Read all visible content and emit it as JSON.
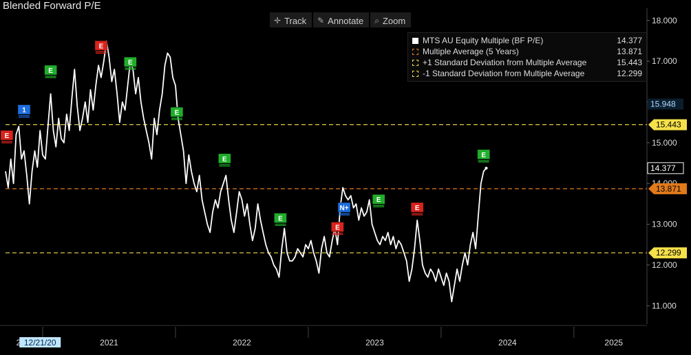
{
  "title": "Blended Forward P/E",
  "toolbar": {
    "track": "Track",
    "annotate": "Annotate",
    "zoom": "Zoom",
    "track_icon": "crosshair-icon",
    "annotate_icon": "pencil-icon",
    "zoom_icon": "magnifier-icon"
  },
  "legend": [
    {
      "label": "MTS AU Equity Multiple (BF P/E)",
      "value": "14.377",
      "color": "#ffffff",
      "style": "solid"
    },
    {
      "label": "Multiple Average (5 Years)",
      "value": "13.871",
      "color": "#e07a1a",
      "style": "dashed"
    },
    {
      "label": "+1 Standard Deviation from Multiple Average",
      "value": "15.443",
      "color": "#f5e04a",
      "style": "dashed"
    },
    {
      "label": "-1 Standard Deviation from Multiple Average",
      "value": "12.299",
      "color": "#f5e04a",
      "style": "dashed"
    }
  ],
  "chart_data": {
    "type": "line",
    "title": "Blended Forward P/E",
    "x_axis": {
      "ticks": [
        {
          "label": "2020",
          "year": 2020.87
        },
        {
          "label": "12/21/20",
          "year": 2020.97,
          "highlight": true
        },
        {
          "label": "2021",
          "year": 2021.5
        },
        {
          "label": "2022",
          "year": 2022.5
        },
        {
          "label": "2023",
          "year": 2023.5
        },
        {
          "label": "2024",
          "year": 2024.5
        },
        {
          "label": "2025",
          "year": 2025.3
        }
      ],
      "dividers": [
        2021.0,
        2022.0,
        2023.0,
        2024.0,
        2025.0
      ],
      "range": [
        2020.72,
        2025.55
      ]
    },
    "y_axis": {
      "ticks": [
        "11.000",
        "12.000",
        "13.000",
        "14.000",
        "15.000",
        "16.000",
        "17.000",
        "18.000"
      ],
      "range": [
        10.55,
        18.3
      ],
      "side": "right"
    },
    "series": [
      {
        "name": "MTS AU Equity Multiple (BF P/E)",
        "color": "#ffffff",
        "points": [
          [
            2020.72,
            14.3
          ],
          [
            2020.74,
            13.9
          ],
          [
            2020.76,
            14.6
          ],
          [
            2020.78,
            14.0
          ],
          [
            2020.8,
            15.2
          ],
          [
            2020.82,
            15.4
          ],
          [
            2020.84,
            14.6
          ],
          [
            2020.86,
            14.8
          ],
          [
            2020.88,
            14.2
          ],
          [
            2020.9,
            13.5
          ],
          [
            2020.92,
            14.3
          ],
          [
            2020.94,
            14.8
          ],
          [
            2020.96,
            14.4
          ],
          [
            2020.98,
            15.3
          ],
          [
            2021.0,
            14.7
          ],
          [
            2021.02,
            14.6
          ],
          [
            2021.04,
            15.4
          ],
          [
            2021.06,
            16.2
          ],
          [
            2021.08,
            15.3
          ],
          [
            2021.1,
            14.9
          ],
          [
            2021.12,
            15.6
          ],
          [
            2021.14,
            15.1
          ],
          [
            2021.16,
            15.0
          ],
          [
            2021.18,
            15.7
          ],
          [
            2021.2,
            15.3
          ],
          [
            2021.22,
            16.1
          ],
          [
            2021.24,
            16.8
          ],
          [
            2021.26,
            15.9
          ],
          [
            2021.28,
            15.3
          ],
          [
            2021.3,
            15.6
          ],
          [
            2021.32,
            16.0
          ],
          [
            2021.34,
            15.5
          ],
          [
            2021.36,
            16.3
          ],
          [
            2021.38,
            15.8
          ],
          [
            2021.4,
            16.4
          ],
          [
            2021.42,
            16.9
          ],
          [
            2021.44,
            16.6
          ],
          [
            2021.46,
            17.0
          ],
          [
            2021.48,
            17.5
          ],
          [
            2021.5,
            17.1
          ],
          [
            2021.52,
            16.5
          ],
          [
            2021.54,
            16.8
          ],
          [
            2021.56,
            16.2
          ],
          [
            2021.58,
            15.5
          ],
          [
            2021.6,
            16.0
          ],
          [
            2021.62,
            15.8
          ],
          [
            2021.64,
            16.4
          ],
          [
            2021.66,
            17.0
          ],
          [
            2021.68,
            16.8
          ],
          [
            2021.7,
            16.2
          ],
          [
            2021.72,
            16.6
          ],
          [
            2021.74,
            16.0
          ],
          [
            2021.76,
            15.6
          ],
          [
            2021.78,
            15.3
          ],
          [
            2021.8,
            15.0
          ],
          [
            2021.82,
            14.6
          ],
          [
            2021.84,
            15.6
          ],
          [
            2021.86,
            15.2
          ],
          [
            2021.88,
            15.8
          ],
          [
            2021.9,
            16.2
          ],
          [
            2021.92,
            16.9
          ],
          [
            2021.94,
            17.2
          ],
          [
            2021.96,
            17.1
          ],
          [
            2021.98,
            16.6
          ],
          [
            2022.0,
            16.4
          ],
          [
            2022.02,
            15.6
          ],
          [
            2022.04,
            15.2
          ],
          [
            2022.06,
            14.8
          ],
          [
            2022.08,
            14.0
          ],
          [
            2022.1,
            14.7
          ],
          [
            2022.12,
            14.3
          ],
          [
            2022.14,
            14.0
          ],
          [
            2022.16,
            13.8
          ],
          [
            2022.18,
            14.2
          ],
          [
            2022.2,
            13.6
          ],
          [
            2022.22,
            13.3
          ],
          [
            2022.24,
            13.0
          ],
          [
            2022.26,
            12.8
          ],
          [
            2022.28,
            13.3
          ],
          [
            2022.3,
            13.6
          ],
          [
            2022.32,
            13.4
          ],
          [
            2022.34,
            13.8
          ],
          [
            2022.36,
            14.0
          ],
          [
            2022.38,
            14.2
          ],
          [
            2022.4,
            13.6
          ],
          [
            2022.42,
            13.1
          ],
          [
            2022.44,
            12.8
          ],
          [
            2022.46,
            13.3
          ],
          [
            2022.48,
            13.8
          ],
          [
            2022.5,
            13.6
          ],
          [
            2022.52,
            13.2
          ],
          [
            2022.54,
            13.5
          ],
          [
            2022.56,
            13.0
          ],
          [
            2022.58,
            12.6
          ],
          [
            2022.6,
            12.9
          ],
          [
            2022.62,
            13.5
          ],
          [
            2022.64,
            13.1
          ],
          [
            2022.66,
            12.8
          ],
          [
            2022.68,
            12.5
          ],
          [
            2022.7,
            12.3
          ],
          [
            2022.72,
            12.2
          ],
          [
            2022.74,
            12.0
          ],
          [
            2022.76,
            11.9
          ],
          [
            2022.78,
            11.7
          ],
          [
            2022.8,
            12.4
          ],
          [
            2022.82,
            12.9
          ],
          [
            2022.84,
            12.3
          ],
          [
            2022.86,
            12.1
          ],
          [
            2022.88,
            12.1
          ],
          [
            2022.9,
            12.2
          ],
          [
            2022.92,
            12.4
          ],
          [
            2022.94,
            12.3
          ],
          [
            2022.96,
            12.2
          ],
          [
            2022.98,
            12.5
          ],
          [
            2023.0,
            12.4
          ],
          [
            2023.02,
            12.6
          ],
          [
            2023.04,
            12.3
          ],
          [
            2023.06,
            12.1
          ],
          [
            2023.08,
            11.8
          ],
          [
            2023.1,
            12.4
          ],
          [
            2023.12,
            12.7
          ],
          [
            2023.14,
            12.3
          ],
          [
            2023.16,
            12.2
          ],
          [
            2023.18,
            12.6
          ],
          [
            2023.2,
            12.9
          ],
          [
            2023.22,
            12.5
          ],
          [
            2023.24,
            13.4
          ],
          [
            2023.26,
            13.9
          ],
          [
            2023.28,
            13.7
          ],
          [
            2023.3,
            13.6
          ],
          [
            2023.32,
            13.7
          ],
          [
            2023.34,
            13.4
          ],
          [
            2023.36,
            13.5
          ],
          [
            2023.38,
            13.1
          ],
          [
            2023.4,
            13.4
          ],
          [
            2023.42,
            13.2
          ],
          [
            2023.44,
            13.3
          ],
          [
            2023.46,
            13.6
          ],
          [
            2023.48,
            13.0
          ],
          [
            2023.5,
            12.8
          ],
          [
            2023.52,
            12.6
          ],
          [
            2023.54,
            12.5
          ],
          [
            2023.56,
            12.7
          ],
          [
            2023.58,
            12.6
          ],
          [
            2023.6,
            12.8
          ],
          [
            2023.62,
            12.5
          ],
          [
            2023.64,
            12.7
          ],
          [
            2023.66,
            12.4
          ],
          [
            2023.68,
            12.6
          ],
          [
            2023.7,
            12.5
          ],
          [
            2023.72,
            12.3
          ],
          [
            2023.74,
            12.1
          ],
          [
            2023.76,
            11.6
          ],
          [
            2023.78,
            11.9
          ],
          [
            2023.8,
            12.4
          ],
          [
            2023.82,
            13.1
          ],
          [
            2023.84,
            12.6
          ],
          [
            2023.86,
            12.0
          ],
          [
            2023.88,
            11.8
          ],
          [
            2023.9,
            11.7
          ],
          [
            2023.92,
            11.9
          ],
          [
            2023.94,
            11.8
          ],
          [
            2023.96,
            11.6
          ],
          [
            2023.98,
            11.9
          ],
          [
            2024.0,
            11.7
          ],
          [
            2024.02,
            11.5
          ],
          [
            2024.04,
            11.8
          ],
          [
            2024.06,
            11.6
          ],
          [
            2024.08,
            11.1
          ],
          [
            2024.1,
            11.5
          ],
          [
            2024.12,
            11.9
          ],
          [
            2024.14,
            11.6
          ],
          [
            2024.16,
            12.0
          ],
          [
            2024.18,
            12.3
          ],
          [
            2024.2,
            12.0
          ],
          [
            2024.22,
            12.5
          ],
          [
            2024.24,
            12.8
          ],
          [
            2024.26,
            12.4
          ],
          [
            2024.28,
            13.2
          ],
          [
            2024.3,
            14.0
          ],
          [
            2024.32,
            14.3
          ],
          [
            2024.34,
            14.377
          ]
        ]
      }
    ],
    "reference_lines": [
      {
        "name": "Multiple Average (5 Years)",
        "value": 13.871,
        "label": "13.871",
        "color": "#e07a1a",
        "label_bg": "#e07a1a",
        "label_fg": "#000000"
      },
      {
        "name": "+1 Standard Deviation from Multiple Average",
        "value": 15.443,
        "label": "15.443",
        "color": "#f5e04a",
        "label_bg": "#f5e04a",
        "label_fg": "#000000"
      },
      {
        "name": "-1 Standard Deviation from Multiple Average",
        "value": 12.299,
        "label": "12.299",
        "color": "#f5e04a",
        "label_bg": "#f5e04a",
        "label_fg": "#000000"
      }
    ],
    "axis_callouts": [
      {
        "value": 15.948,
        "label": "15.948",
        "bg": "#0a1e2e",
        "fg": "#b0d8ff"
      },
      {
        "value": 14.377,
        "label": "14.377",
        "bg": "#000000",
        "fg": "#ffffff",
        "border": "#ffffff"
      }
    ],
    "event_markers": [
      {
        "x": 2020.73,
        "y": 15.15,
        "text": "E",
        "color": "#d9231c"
      },
      {
        "x": 2020.86,
        "y": 15.78,
        "text": "1",
        "color": "#1e6fe0"
      },
      {
        "x": 2021.06,
        "y": 16.75,
        "text": "E",
        "color": "#1fae2a"
      },
      {
        "x": 2021.44,
        "y": 17.35,
        "text": "E",
        "color": "#d9231c"
      },
      {
        "x": 2021.66,
        "y": 16.95,
        "text": "E",
        "color": "#1fae2a"
      },
      {
        "x": 2022.01,
        "y": 15.72,
        "text": "E",
        "color": "#1fae2a"
      },
      {
        "x": 2022.37,
        "y": 14.58,
        "text": "E",
        "color": "#1fae2a"
      },
      {
        "x": 2022.79,
        "y": 13.12,
        "text": "E",
        "color": "#1fae2a"
      },
      {
        "x": 2023.22,
        "y": 12.9,
        "text": "E",
        "color": "#d9231c"
      },
      {
        "x": 2023.27,
        "y": 13.38,
        "text": "N+",
        "color": "#1e6fe0"
      },
      {
        "x": 2023.53,
        "y": 13.58,
        "text": "E",
        "color": "#1fae2a"
      },
      {
        "x": 2023.82,
        "y": 13.38,
        "text": "E",
        "color": "#d9231c"
      },
      {
        "x": 2024.32,
        "y": 14.68,
        "text": "E",
        "color": "#1fae2a"
      }
    ],
    "grid": false
  }
}
